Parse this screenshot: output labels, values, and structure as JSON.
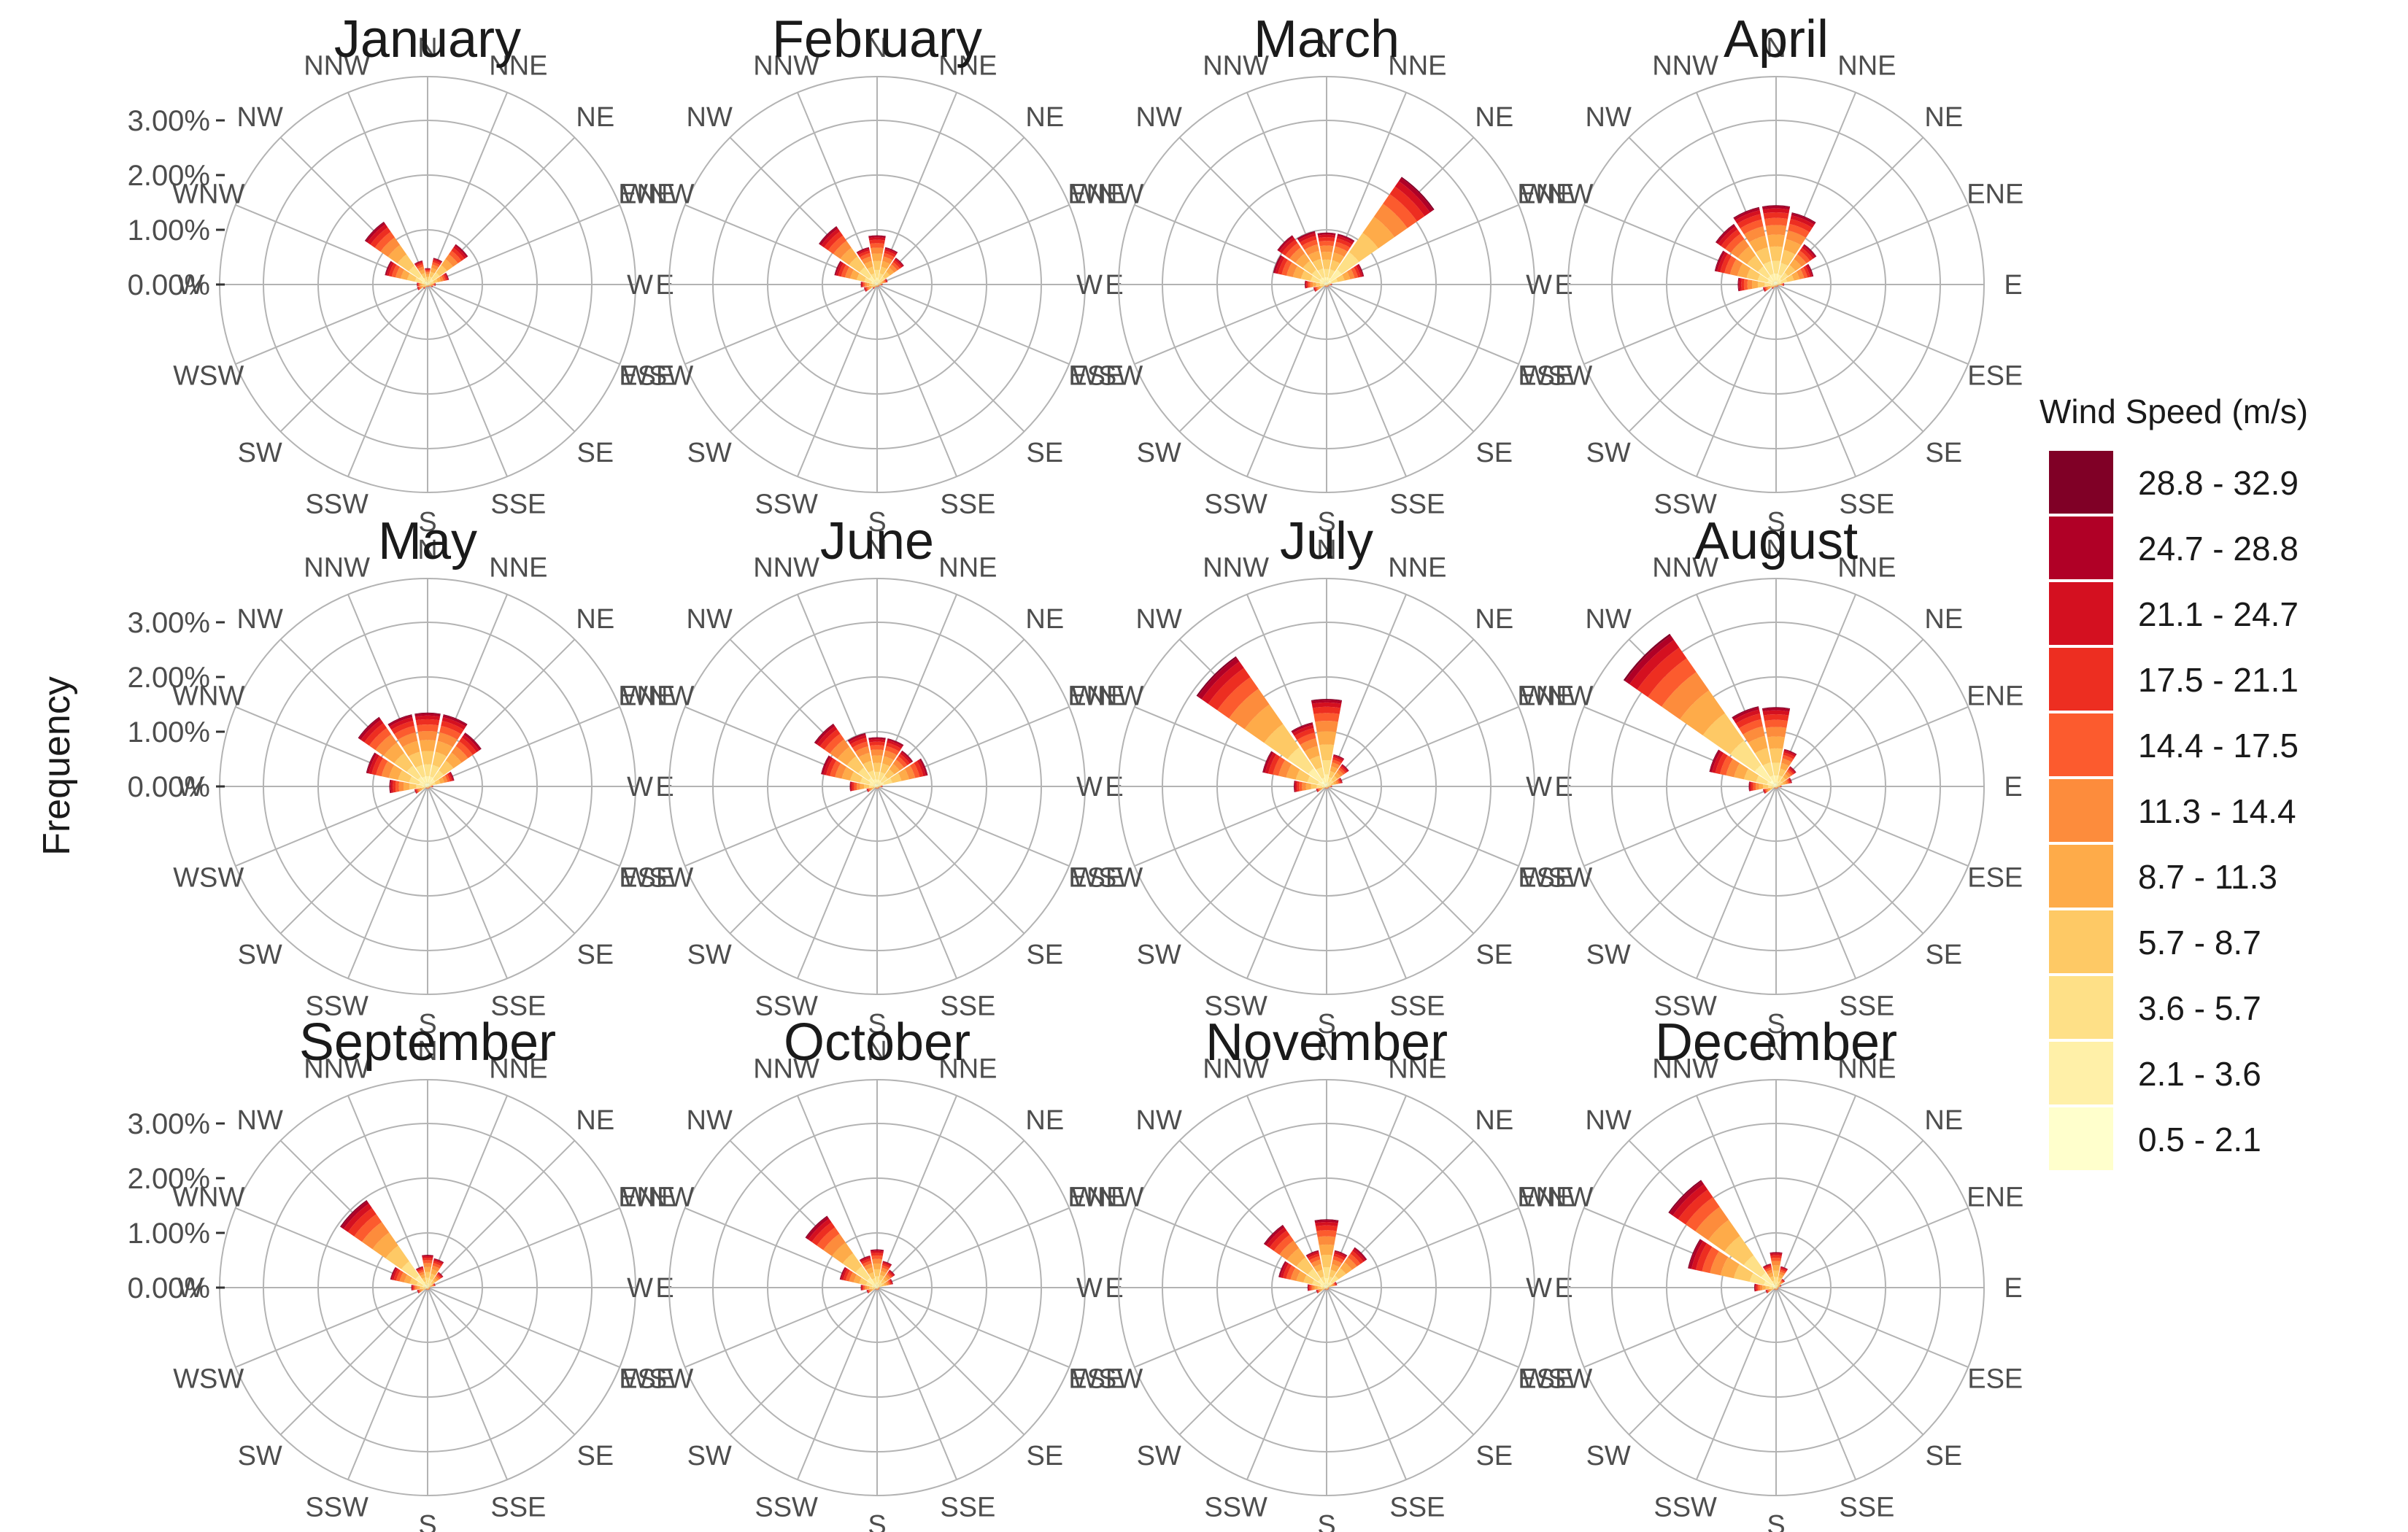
{
  "chart_data": {
    "type": "windrose",
    "ylabel": "Frequency",
    "radial_ticks": [
      {
        "value": 0,
        "label": "0.00%"
      },
      {
        "value": 1,
        "label": "1.00%"
      },
      {
        "value": 2,
        "label": "2.00%"
      },
      {
        "value": 3,
        "label": "3.00%"
      }
    ],
    "rmax": 3.8,
    "directions": [
      "N",
      "NNE",
      "NE",
      "ENE",
      "E",
      "ESE",
      "SE",
      "SSE",
      "S",
      "SSW",
      "SW",
      "WSW",
      "W",
      "WNW",
      "NW",
      "NNW"
    ],
    "legend": {
      "title": "Wind Speed (m/s)",
      "bins": [
        "0.5 - 2.1",
        "2.1 - 3.6",
        "3.6 - 5.7",
        "5.7 - 8.7",
        "8.7 - 11.3",
        "11.3 - 14.4",
        "14.4 - 17.5",
        "17.5 - 21.1",
        "21.1 - 24.7",
        "24.7 - 28.8",
        "28.8 - 32.9"
      ],
      "colors": [
        "#ffffcc",
        "#fff0a8",
        "#fee087",
        "#fec965",
        "#feab49",
        "#fd8c3c",
        "#fc5b2e",
        "#ed2e21",
        "#d41020",
        "#b00026",
        "#800026"
      ]
    },
    "months": [
      {
        "name": "January",
        "totals": [
          0.3,
          0.5,
          0.9,
          0.4,
          0.15,
          0.1,
          0.05,
          0.05,
          0.05,
          0.05,
          0.1,
          0.2,
          0.2,
          0.8,
          1.4,
          0.45
        ]
      },
      {
        "name": "February",
        "totals": [
          0.9,
          0.7,
          0.6,
          0.2,
          0.1,
          0.05,
          0.05,
          0.05,
          0.05,
          0.05,
          0.1,
          0.25,
          0.3,
          0.8,
          1.3,
          0.7
        ]
      },
      {
        "name": "March",
        "totals": [
          0.95,
          0.95,
          2.4,
          0.7,
          0.1,
          0.05,
          0.05,
          0.05,
          0.05,
          0.05,
          0.05,
          0.25,
          0.4,
          1.0,
          1.1,
          1.0
        ]
      },
      {
        "name": "April",
        "totals": [
          1.45,
          1.35,
          0.9,
          0.7,
          0.15,
          0.05,
          0.05,
          0.05,
          0.05,
          0.05,
          0.1,
          0.25,
          0.7,
          1.15,
          1.35,
          1.45
        ]
      },
      {
        "name": "May",
        "totals": [
          1.35,
          1.35,
          1.2,
          0.5,
          0.1,
          0.05,
          0.05,
          0.05,
          0.05,
          0.05,
          0.05,
          0.25,
          0.7,
          1.15,
          1.55,
          1.35
        ]
      },
      {
        "name": "June",
        "totals": [
          0.9,
          0.9,
          0.8,
          0.95,
          0.1,
          0.05,
          0.05,
          0.05,
          0.05,
          0.05,
          0.05,
          0.2,
          0.5,
          1.05,
          1.4,
          1.0
        ]
      },
      {
        "name": "July",
        "totals": [
          1.6,
          0.6,
          0.5,
          0.3,
          0.1,
          0.05,
          0.05,
          0.05,
          0.05,
          0.05,
          0.05,
          0.2,
          0.6,
          1.2,
          2.9,
          1.2
        ]
      },
      {
        "name": "August",
        "totals": [
          1.45,
          0.7,
          0.45,
          0.3,
          0.1,
          0.05,
          0.05,
          0.05,
          0.05,
          0.05,
          0.05,
          0.25,
          0.5,
          1.25,
          3.4,
          1.5
        ]
      },
      {
        "name": "September",
        "totals": [
          0.6,
          0.55,
          0.35,
          0.15,
          0.05,
          0.05,
          0.05,
          0.05,
          0.05,
          0.05,
          0.05,
          0.2,
          0.3,
          0.7,
          1.95,
          0.4
        ]
      },
      {
        "name": "October",
        "totals": [
          0.7,
          0.5,
          0.4,
          0.3,
          0.05,
          0.05,
          0.05,
          0.05,
          0.05,
          0.05,
          0.05,
          0.2,
          0.3,
          0.7,
          1.6,
          0.6
        ]
      },
      {
        "name": "November",
        "totals": [
          1.25,
          0.7,
          0.9,
          0.2,
          0.05,
          0.05,
          0.05,
          0.05,
          0.05,
          0.05,
          0.05,
          0.2,
          0.35,
          0.9,
          1.4,
          0.7
        ]
      },
      {
        "name": "December",
        "totals": [
          0.65,
          0.4,
          0.2,
          0.1,
          0.05,
          0.05,
          0.05,
          0.05,
          0.05,
          0.05,
          0.05,
          0.2,
          0.4,
          1.65,
          2.4,
          0.45
        ]
      }
    ],
    "speed_proportions": [
      0.04,
      0.1,
      0.16,
      0.18,
      0.15,
      0.12,
      0.09,
      0.07,
      0.05,
      0.03,
      0.01
    ]
  }
}
